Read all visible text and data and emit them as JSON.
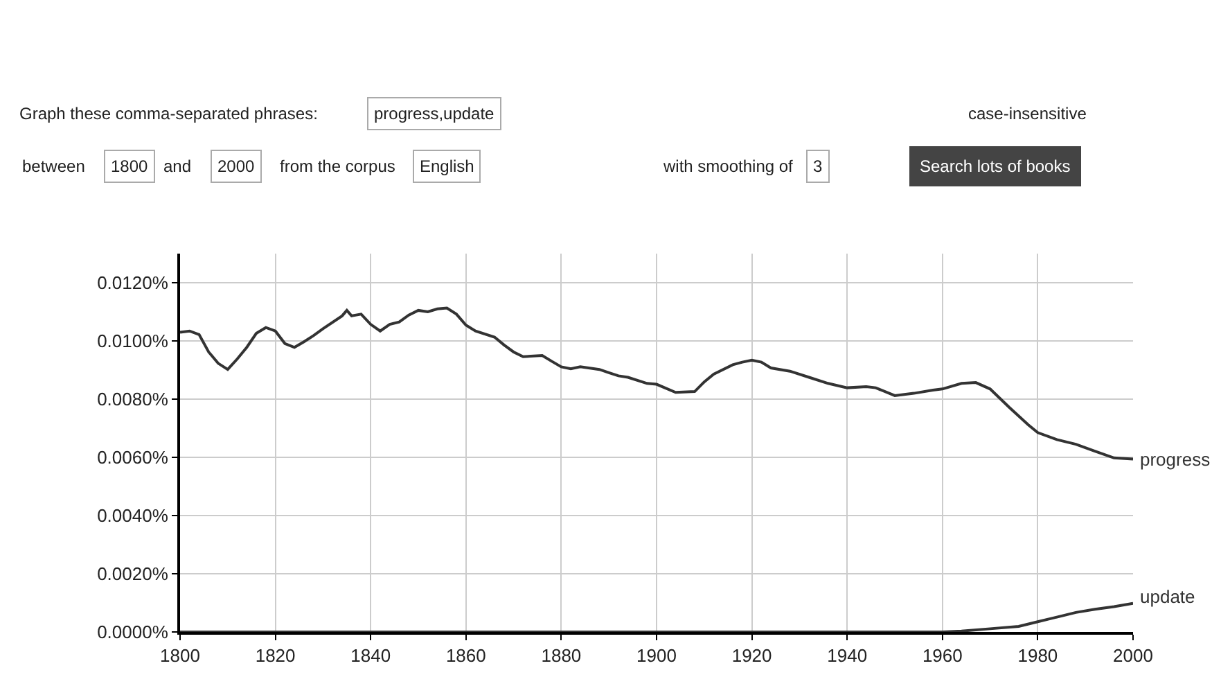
{
  "chart_data": {
    "type": "line",
    "annotations": [
      "Graph these comma-separated phrases:",
      "progress,update",
      "case-insensitive",
      "between",
      "1800",
      "and",
      "2000",
      "from the corpus",
      "English",
      "with smoothing of",
      "3",
      "Search lots of books"
    ],
    "series": [
      {
        "name": "progress",
        "color": "#333333",
        "x": [
          1800,
          1802,
          1804,
          1806,
          1808,
          1810,
          1812,
          1814,
          1816,
          1818,
          1820,
          1822,
          1824,
          1826,
          1828,
          1830,
          1834,
          1835,
          1836,
          1838,
          1840,
          1842,
          1844,
          1846,
          1848,
          1850,
          1852,
          1854,
          1856,
          1858,
          1860,
          1862,
          1866,
          1868,
          1870,
          1872,
          1876,
          1878,
          1880,
          1882,
          1884,
          1888,
          1890,
          1892,
          1894,
          1898,
          1900,
          1904,
          1908,
          1910,
          1912,
          1916,
          1918,
          1920,
          1922,
          1924,
          1928,
          1932,
          1936,
          1940,
          1944,
          1946,
          1950,
          1954,
          1958,
          1960,
          1964,
          1967,
          1970,
          1974,
          1978,
          1980,
          1984,
          1988,
          1992,
          1996,
          2000
        ],
        "values": [
          0.0103,
          0.01034,
          0.01022,
          0.00962,
          0.00923,
          0.00902,
          0.00938,
          0.00978,
          0.01026,
          0.01046,
          0.01034,
          0.00991,
          0.00978,
          0.00997,
          0.01018,
          0.01042,
          0.01086,
          0.01105,
          0.01086,
          0.01092,
          0.01057,
          0.01034,
          0.01057,
          0.01065,
          0.01089,
          0.01105,
          0.011,
          0.0111,
          0.01113,
          0.01092,
          0.01054,
          0.01034,
          0.01013,
          0.00986,
          0.00962,
          0.00946,
          0.0095,
          0.0093,
          0.00911,
          0.00904,
          0.00911,
          0.00902,
          0.00891,
          0.0088,
          0.00875,
          0.00854,
          0.00851,
          0.00823,
          0.00826,
          0.00859,
          0.00886,
          0.00918,
          0.00927,
          0.00934,
          0.00927,
          0.00907,
          0.00896,
          0.00875,
          0.00854,
          0.00839,
          0.00843,
          0.00839,
          0.00812,
          0.0082,
          0.00831,
          0.00835,
          0.00854,
          0.00857,
          0.00835,
          0.00772,
          0.00712,
          0.00685,
          0.00661,
          0.00645,
          0.00621,
          0.00598,
          0.00594
        ]
      },
      {
        "name": "update",
        "color": "#333333",
        "x": [
          1800,
          1960,
          1964,
          1970,
          1976,
          1980,
          1984,
          1988,
          1992,
          1996,
          2000
        ],
        "values": [
          0,
          0,
          3e-05,
          0.00011,
          0.00019,
          0.00035,
          0.00051,
          0.00067,
          0.00078,
          0.00087,
          0.00098
        ]
      }
    ],
    "xlim": [
      1800,
      2000
    ],
    "xticks": [
      1800,
      1820,
      1840,
      1860,
      1880,
      1900,
      1920,
      1940,
      1960,
      1980,
      2000
    ],
    "ylim": [
      0,
      0.013
    ],
    "yticks": [
      {
        "value": 0,
        "label": "0.0000%"
      },
      {
        "value": 0.002,
        "label": "0.0020%"
      },
      {
        "value": 0.004,
        "label": "0.0040%"
      },
      {
        "value": 0.006,
        "label": "0.0060%"
      },
      {
        "value": 0.008,
        "label": "0.0080%"
      },
      {
        "value": 0.01,
        "label": "0.0100%"
      },
      {
        "value": 0.012,
        "label": "0.0120%"
      }
    ],
    "grid": true,
    "line_style": "solid",
    "marker": "none"
  }
}
